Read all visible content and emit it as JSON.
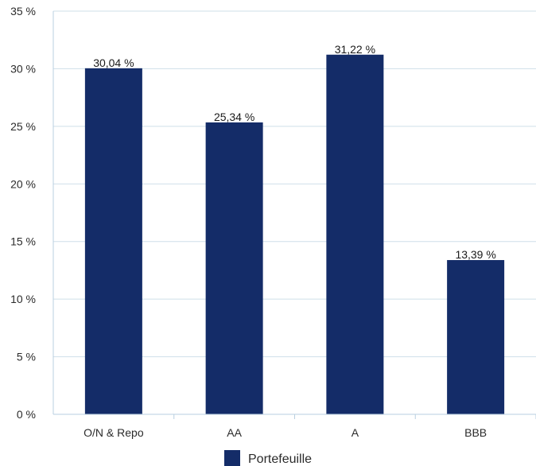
{
  "chart_data": {
    "type": "bar",
    "categories": [
      "O/N & Repo",
      "AA",
      "A",
      "BBB"
    ],
    "series": [
      {
        "name": "Portefeuille",
        "values": [
          30.04,
          25.34,
          31.22,
          13.39
        ],
        "labels": [
          "30,04 %",
          "25,34 %",
          "31,22 %",
          "13,39 %"
        ]
      }
    ],
    "ylim": [
      0,
      35
    ],
    "yticks": [
      0,
      5,
      10,
      15,
      20,
      25,
      30,
      35
    ],
    "ytick_labels": [
      "0 %",
      "5 %",
      "10 %",
      "15 %",
      "20 %",
      "25 %",
      "30 %",
      "35 %"
    ],
    "grid": true,
    "legend_position": "bottom-center",
    "colors": {
      "bar": "#142c68",
      "grid": "#cfdfe9",
      "axis": "#b9cfe0"
    }
  }
}
